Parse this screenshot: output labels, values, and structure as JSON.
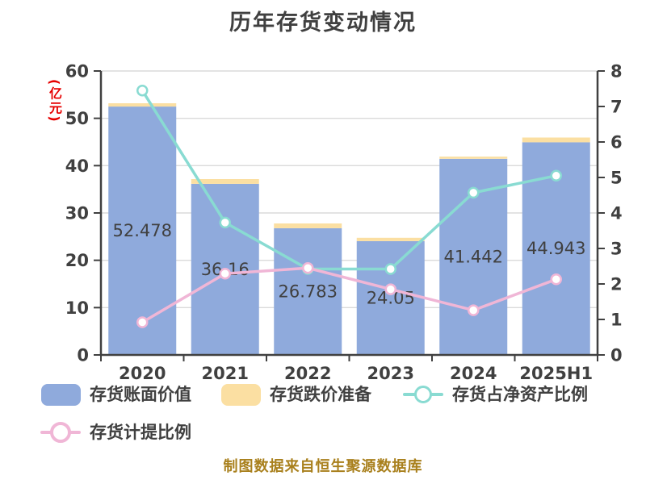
{
  "page": {
    "background": "#FFFFFF"
  },
  "chart_data": {
    "type": "bar",
    "subtype": "combo-bar-line-dual-axis",
    "title": "历年存货变动情况",
    "categories": [
      "2020",
      "2021",
      "2022",
      "2023",
      "2024",
      "2025H1"
    ],
    "left_axis": {
      "unit": "(亿元)",
      "min": 0,
      "max": 60,
      "step": 10,
      "ticks": [
        "0",
        "10",
        "20",
        "30",
        "40",
        "50",
        "60"
      ]
    },
    "right_axis": {
      "min": 0,
      "max": 8,
      "step": 1,
      "ticks": [
        "0",
        "1",
        "2",
        "3",
        "4",
        "5",
        "6",
        "7",
        "8"
      ]
    },
    "series": [
      {
        "name": "存货账面价值",
        "type": "bar",
        "axis": "left",
        "color": "#8FAADC",
        "values": [
          52.478,
          36.16,
          26.783,
          24.05,
          41.442,
          44.943
        ],
        "labels": [
          "52.478",
          "36.16",
          "26.783",
          "24.05",
          "41.442",
          "44.943"
        ]
      },
      {
        "name": "存货跌价准备",
        "type": "bar-stacked",
        "axis": "left",
        "color": "#FBDFA2",
        "values": [
          0.7,
          1.0,
          1.0,
          0.7,
          0.45,
          1.0
        ]
      },
      {
        "name": "存货占净资产比例",
        "type": "line",
        "axis": "right",
        "color": "#89DBD2",
        "values": [
          7.45,
          3.73,
          2.42,
          2.42,
          4.57,
          5.05
        ]
      },
      {
        "name": "存货计提比例",
        "type": "line",
        "axis": "right",
        "color": "#F0B6D6",
        "values": [
          0.92,
          2.29,
          2.45,
          1.85,
          1.26,
          2.13
        ]
      }
    ],
    "grid": true,
    "legend_position": "bottom-left",
    "source": "制图数据来自恒生聚源数据库",
    "colors": {
      "text": "#404040",
      "axis": "#404040",
      "grid": "#DADADA",
      "unit_label": "#E60000",
      "source": "#A9801D",
      "background": "#FFFFFF"
    }
  }
}
